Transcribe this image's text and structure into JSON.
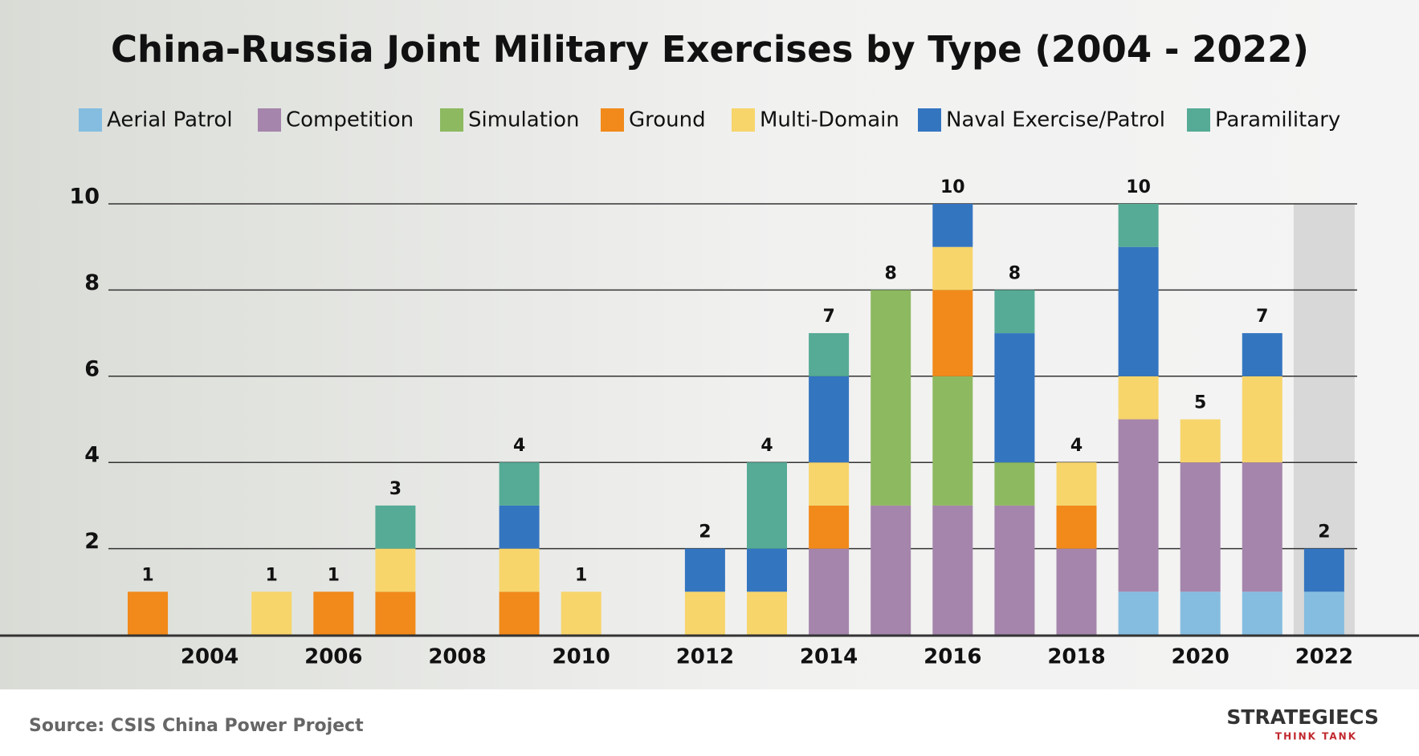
{
  "chart_data": {
    "type": "stacked_bar",
    "title": "China-Russia Joint Military Exercises by Type (2004 - 2022)",
    "categories": [
      null,
      "2004",
      null,
      "2006",
      null,
      "2008",
      null,
      "2010",
      null,
      "2012",
      null,
      "2014",
      null,
      "2016",
      null,
      "2018",
      null,
      "2020",
      null,
      "2022"
    ],
    "series": [
      {
        "name": "Aerial Patrol",
        "color": "#85bde0",
        "values": [
          0,
          0,
          0,
          0,
          0,
          0,
          0,
          0,
          0,
          0,
          0,
          0,
          0,
          0,
          0,
          0,
          1,
          1,
          1,
          1
        ]
      },
      {
        "name": "Competition",
        "color": "#a585ab",
        "values": [
          0,
          0,
          0,
          0,
          0,
          0,
          0,
          0,
          0,
          0,
          0,
          2,
          3,
          3,
          3,
          2,
          4,
          3,
          3,
          0
        ]
      },
      {
        "name": "Simulation",
        "color": "#8db960",
        "values": [
          0,
          0,
          0,
          0,
          0,
          0,
          0,
          0,
          0,
          0,
          0,
          0,
          5,
          3,
          1,
          0,
          0,
          0,
          0,
          0
        ]
      },
      {
        "name": "Ground",
        "color": "#f18a1a",
        "values": [
          1,
          0,
          0,
          1,
          1,
          0,
          1,
          0,
          0,
          0,
          0,
          1,
          0,
          2,
          0,
          1,
          0,
          0,
          0,
          0
        ]
      },
      {
        "name": "Multi-Domain",
        "color": "#f7d56b",
        "values": [
          0,
          0,
          1,
          0,
          1,
          0,
          1,
          1,
          0,
          1,
          1,
          1,
          0,
          1,
          0,
          1,
          1,
          1,
          2,
          0
        ]
      },
      {
        "name": "Naval Exercise/Patrol",
        "color": "#3475c0",
        "values": [
          0,
          0,
          0,
          0,
          0,
          0,
          1,
          0,
          0,
          1,
          1,
          2,
          0,
          1,
          3,
          0,
          3,
          0,
          1,
          1
        ]
      },
      {
        "name": "Paramilitary",
        "color": "#55ab95",
        "values": [
          0,
          0,
          0,
          0,
          1,
          0,
          1,
          0,
          0,
          0,
          2,
          1,
          0,
          0,
          1,
          0,
          1,
          0,
          0,
          0
        ]
      }
    ],
    "totals": [
      1,
      null,
      1,
      1,
      3,
      null,
      4,
      1,
      null,
      2,
      4,
      7,
      8,
      10,
      8,
      4,
      10,
      5,
      7,
      2
    ],
    "ylim": [
      0,
      10
    ],
    "yticks": [
      2,
      4,
      6,
      8,
      10
    ],
    "grid": true,
    "source": "Source: CSIS China Power Project",
    "logo": "STRATEGIECS",
    "logo_tagline": "THINK TANK"
  }
}
